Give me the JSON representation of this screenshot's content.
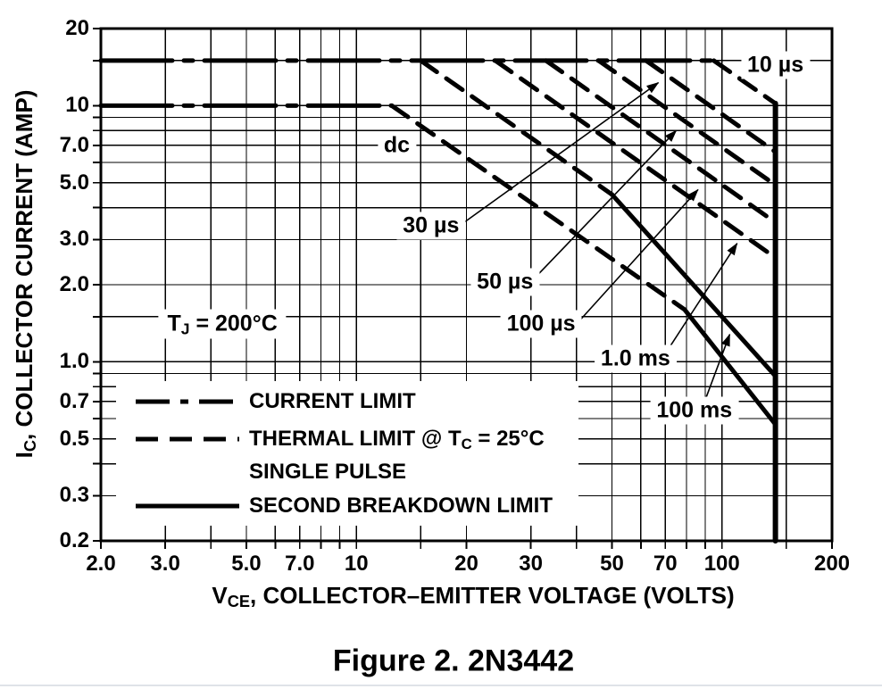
{
  "page": {
    "background": "#ffffff",
    "ink": "#000000",
    "divider_color": "#dfe3e8"
  },
  "figure_caption": "Figure 2. 2N3442",
  "chart_data": {
    "type": "line",
    "title": "Figure 2. 2N3442",
    "description": "Active-region safe operating area, log-log plot",
    "x_axis": {
      "label_parts": [
        {
          "t": "V"
        },
        {
          "t": "CE",
          "sub": true
        },
        {
          "t": ", COLLECTOR–EMITTER VOLTAGE (VOLTS)"
        }
      ],
      "scale": "log",
      "range": [
        2,
        200
      ],
      "ticks": [
        {
          "v": 2,
          "label": "2.0"
        },
        {
          "v": 3,
          "label": "3.0"
        },
        {
          "v": 5,
          "label": "5.0"
        },
        {
          "v": 7,
          "label": "7.0"
        },
        {
          "v": 10,
          "label": "10"
        },
        {
          "v": 20,
          "label": "20"
        },
        {
          "v": 30,
          "label": "30"
        },
        {
          "v": 50,
          "label": "50"
        },
        {
          "v": 70,
          "label": "70"
        },
        {
          "v": 100,
          "label": "100"
        },
        {
          "v": 200,
          "label": "200"
        }
      ],
      "gridlines": [
        2,
        3,
        4,
        5,
        6,
        7,
        8,
        9,
        10,
        15,
        20,
        30,
        40,
        50,
        60,
        70,
        80,
        90,
        100,
        150,
        200
      ]
    },
    "y_axis": {
      "label_parts": [
        {
          "t": "I"
        },
        {
          "t": "C",
          "sub": true
        },
        {
          "t": ", COLLECTOR CURRENT (AMP)"
        }
      ],
      "scale": "log",
      "range": [
        0.2,
        20
      ],
      "ticks": [
        {
          "v": 20,
          "label": "20"
        },
        {
          "v": 10,
          "label": "10"
        },
        {
          "v": 7,
          "label": "7.0"
        },
        {
          "v": 5,
          "label": "5.0"
        },
        {
          "v": 3,
          "label": "3.0"
        },
        {
          "v": 2,
          "label": "2.0"
        },
        {
          "v": 1,
          "label": "1.0"
        },
        {
          "v": 0.7,
          "label": "0.7"
        },
        {
          "v": 0.5,
          "label": "0.5"
        },
        {
          "v": 0.3,
          "label": "0.3"
        },
        {
          "v": 0.2,
          "label": "0.2"
        }
      ],
      "gridlines": [
        0.2,
        0.3,
        0.4,
        0.5,
        0.6,
        0.7,
        0.8,
        0.9,
        1,
        1.5,
        2,
        3,
        4,
        5,
        6,
        7,
        8,
        9,
        10,
        15,
        20
      ]
    },
    "annotation": {
      "parts": [
        {
          "t": "T"
        },
        {
          "t": "J",
          "sub": true
        },
        {
          "t": " = 200°C"
        }
      ],
      "v": 4.3,
      "i": 1.4
    },
    "series": [
      {
        "name": "current-limit-pulse",
        "limit": "current",
        "style": "dashdot",
        "width": 5,
        "points": [
          [
            2,
            15
          ],
          [
            95,
            15
          ]
        ]
      },
      {
        "name": "current-limit-dc",
        "limit": "current",
        "style": "dashdot",
        "width": 5,
        "points": [
          [
            2,
            10
          ],
          [
            12.5,
            10
          ]
        ]
      },
      {
        "name": "thermal-limit-10us",
        "pulse": "10 µs",
        "style": "dashed",
        "width": 5,
        "points": [
          [
            95,
            15
          ],
          [
            140,
            10.2
          ]
        ]
      },
      {
        "name": "thermal-limit-30us",
        "pulse": "30 µs",
        "style": "dashed",
        "width": 5,
        "points": [
          [
            62,
            15
          ],
          [
            140,
            6.6
          ]
        ]
      },
      {
        "name": "thermal-limit-50us",
        "pulse": "50 µs",
        "style": "dashed",
        "width": 5,
        "points": [
          [
            46,
            15
          ],
          [
            140,
            4.9
          ]
        ]
      },
      {
        "name": "thermal-limit-100us",
        "pulse": "100 µs",
        "style": "dashed",
        "width": 5,
        "points": [
          [
            33,
            15
          ],
          [
            140,
            3.5
          ]
        ]
      },
      {
        "name": "thermal-limit-1ms",
        "pulse": "1.0 ms",
        "style": "dashed",
        "width": 5,
        "points": [
          [
            24,
            15
          ],
          [
            140,
            2.55
          ]
        ]
      },
      {
        "name": "thermal-limit-100ms",
        "pulse": "100 ms",
        "style": "dashed",
        "width": 5,
        "points": [
          [
            15,
            15
          ],
          [
            50,
            4.5
          ]
        ]
      },
      {
        "name": "second-breakdown-100ms",
        "pulse": "100 ms",
        "style": "solid",
        "width": 5,
        "points": [
          [
            50,
            4.5
          ],
          [
            140,
            0.88
          ]
        ]
      },
      {
        "name": "thermal-limit-dc",
        "pulse": "dc",
        "style": "dashed",
        "width": 5,
        "points": [
          [
            12.5,
            10
          ],
          [
            79,
            1.6
          ]
        ]
      },
      {
        "name": "second-breakdown-dc",
        "pulse": "dc",
        "style": "solid",
        "width": 5,
        "points": [
          [
            79,
            1.6
          ],
          [
            140,
            0.57
          ]
        ]
      },
      {
        "name": "voltage-limit",
        "limit": "voltage",
        "style": "solid",
        "width": 6,
        "points": [
          [
            140,
            10.2
          ],
          [
            140,
            0.2
          ]
        ]
      }
    ],
    "curve_labels": [
      {
        "text": "10 µs",
        "v": 140,
        "i": 14.4
      },
      {
        "text": "dc",
        "v": 12.9,
        "i": 7.0
      },
      {
        "text": "30 µs",
        "v": 16,
        "i": 3.4
      },
      {
        "text": "50 µs",
        "v": 25.5,
        "i": 2.05
      },
      {
        "text": "100 µs",
        "v": 32,
        "i": 1.4
      },
      {
        "text": "1.0 ms",
        "v": 58,
        "i": 1.03
      },
      {
        "text": "100 ms",
        "v": 84,
        "i": 0.645
      }
    ],
    "leaders": [
      {
        "label": "30 µs",
        "from": [
          19.7,
          3.5
        ],
        "to": [
          67,
          12.3
        ]
      },
      {
        "label": "50 µs",
        "from": [
          31,
          2.15
        ],
        "to": [
          75,
          8.0
        ]
      },
      {
        "label": "100 µs",
        "from": [
          41,
          1.46
        ],
        "to": [
          86,
          4.7
        ]
      },
      {
        "label": "1.0 ms",
        "from": [
          71,
          1.11
        ],
        "to": [
          110,
          2.9
        ]
      },
      {
        "label": "100 ms",
        "from": [
          90,
          0.71
        ],
        "to": [
          105,
          1.28
        ]
      }
    ],
    "legend": {
      "position": "inside-bottom-left",
      "rows": [
        {
          "swatch": "dashdot",
          "label_parts": [
            {
              "t": "CURRENT LIMIT"
            }
          ]
        },
        {
          "swatch": "dashed",
          "label_parts": [
            {
              "t": "THERMAL LIMIT @ T"
            },
            {
              "t": "C",
              "sub": true
            },
            {
              "t": " = 25°C"
            }
          ]
        },
        {
          "swatch": "none",
          "label_parts": [
            {
              "t": "SINGLE PULSE"
            }
          ]
        },
        {
          "swatch": "solid",
          "label_parts": [
            {
              "t": "SECOND BREAKDOWN LIMIT"
            }
          ]
        }
      ]
    }
  }
}
